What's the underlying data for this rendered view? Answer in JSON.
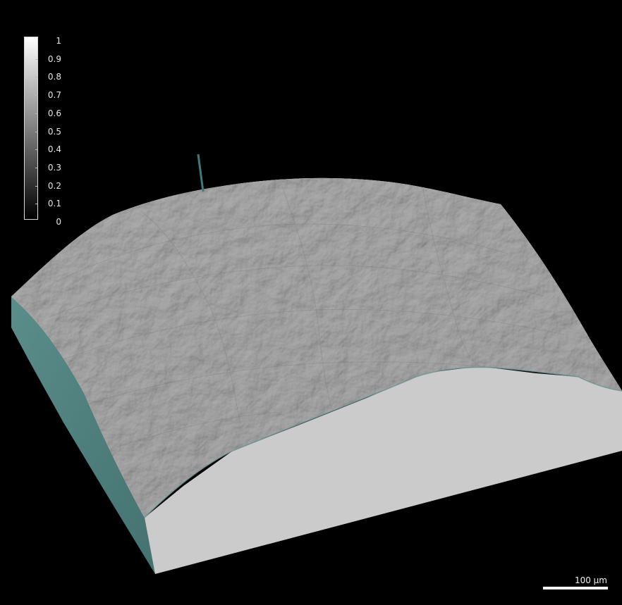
{
  "colorbar": {
    "ticks": [
      "1",
      "0.9",
      "0.8",
      "0.7",
      "0.6",
      "0.5",
      "0.4",
      "0.3",
      "0.2",
      "0.1",
      "0"
    ],
    "min": 0,
    "max": 1,
    "gradient": "grayscale"
  },
  "scale": {
    "label": "100 µm"
  },
  "colors": {
    "background": "#000000",
    "surface": "#bfbfbf",
    "side_face": "#4e7f7c",
    "front_face": "#cbcbcb"
  }
}
